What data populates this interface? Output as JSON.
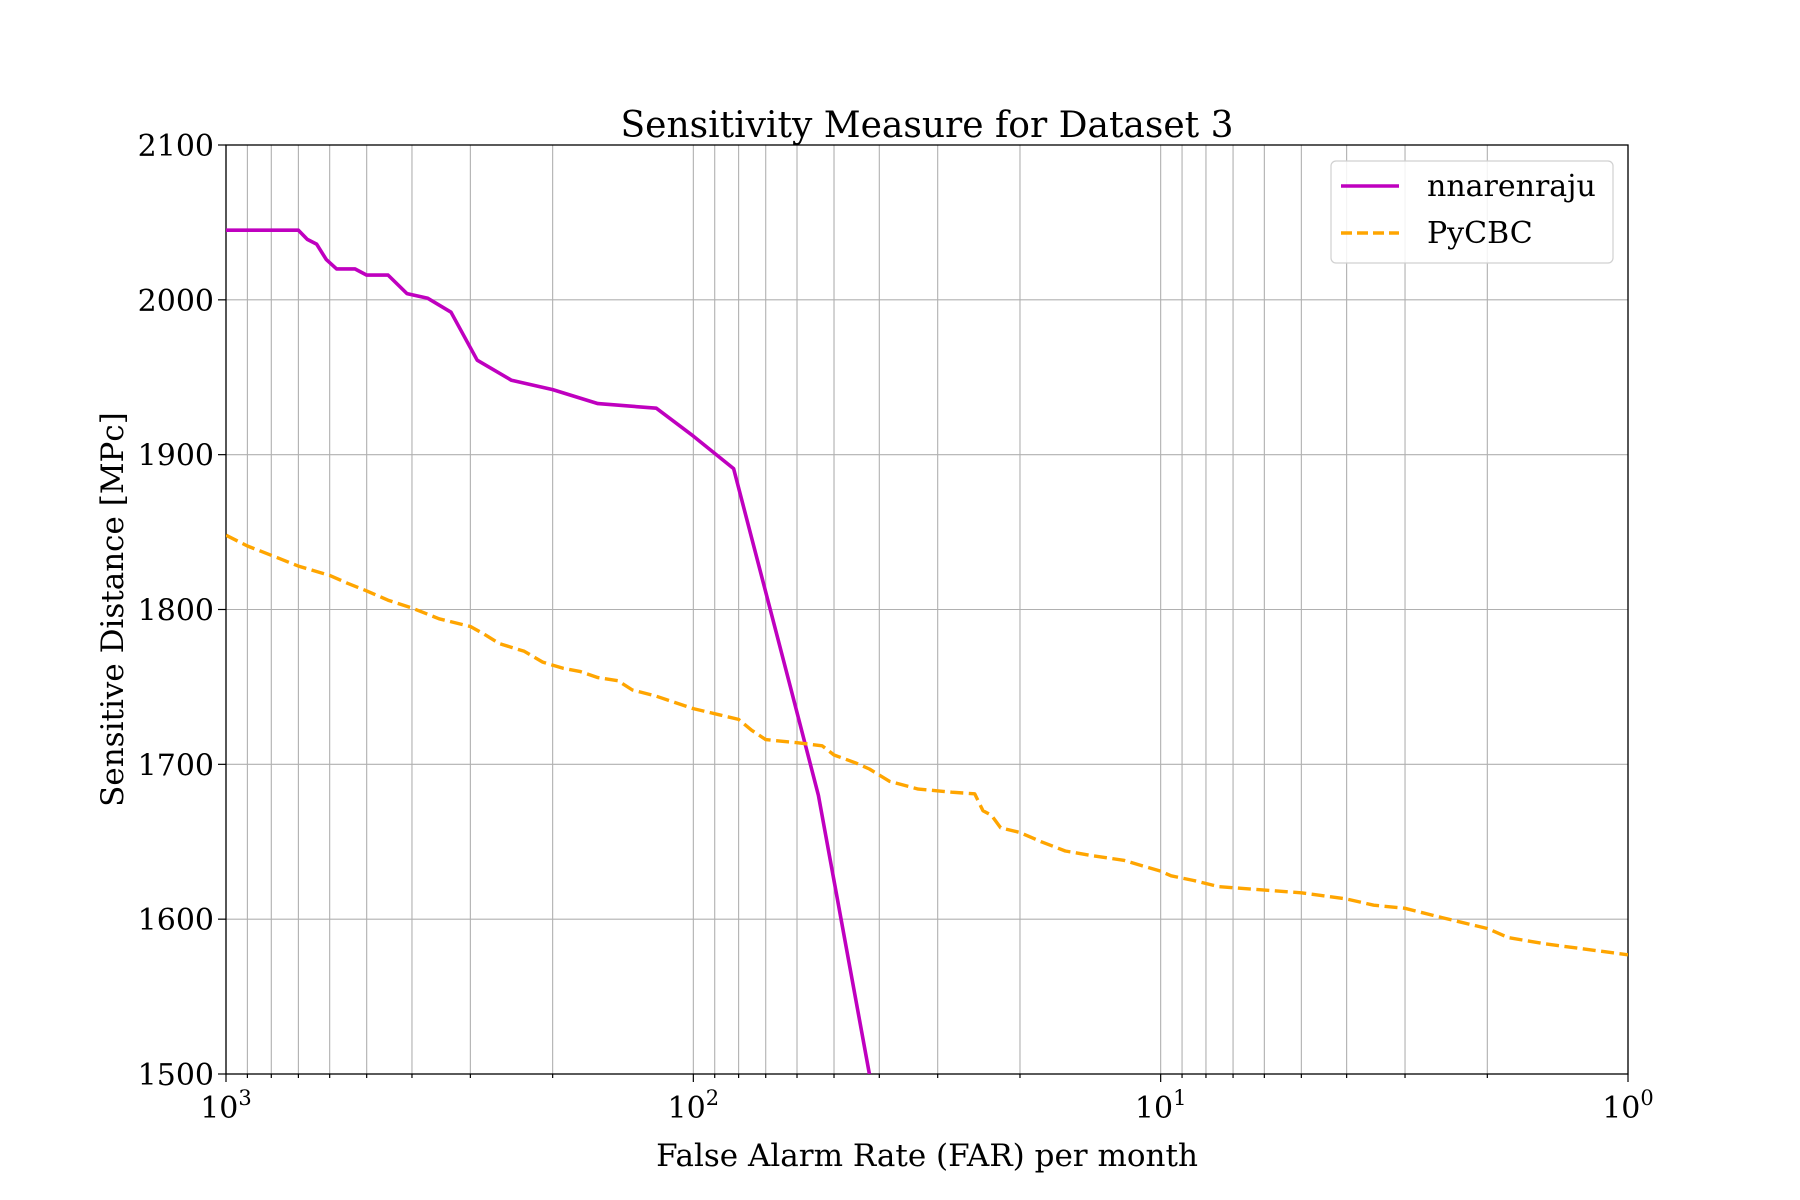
{
  "chart_data": {
    "type": "line",
    "title": "Sensitivity Measure for Dataset 3",
    "xlabel": "False Alarm Rate (FAR) per month",
    "ylabel": "Sensitive Distance [MPc]",
    "x_scale": "log",
    "x_reversed": true,
    "xlim": [
      1000,
      1
    ],
    "ylim": [
      1500,
      2100
    ],
    "grid": "major-and-minor",
    "legend_position": "top-right",
    "x_ticks": [
      {
        "value": 1000,
        "base": "10",
        "exp": "3"
      },
      {
        "value": 100,
        "base": "10",
        "exp": "2"
      },
      {
        "value": 10,
        "base": "10",
        "exp": "1"
      },
      {
        "value": 1,
        "base": "10",
        "exp": "0"
      }
    ],
    "y_ticks": [
      {
        "value": 1500,
        "label": "1500"
      },
      {
        "value": 1600,
        "label": "1600"
      },
      {
        "value": 1700,
        "label": "1700"
      },
      {
        "value": 1800,
        "label": "1800"
      },
      {
        "value": 1900,
        "label": "1900"
      },
      {
        "value": 2000,
        "label": "2000"
      },
      {
        "value": 2100,
        "label": "2100"
      }
    ],
    "series": [
      {
        "name": "nnarenraju",
        "color": "#bf00bf",
        "style": "solid",
        "points": [
          [
            1000,
            2045
          ],
          [
            700,
            2045
          ],
          [
            670,
            2039
          ],
          [
            640,
            2036
          ],
          [
            610,
            2026
          ],
          [
            580,
            2020
          ],
          [
            530,
            2020
          ],
          [
            500,
            2016
          ],
          [
            450,
            2016
          ],
          [
            410,
            2004
          ],
          [
            370,
            2001
          ],
          [
            330,
            1992
          ],
          [
            290,
            1961
          ],
          [
            245,
            1948
          ],
          [
            200,
            1942
          ],
          [
            160,
            1933
          ],
          [
            120,
            1930
          ],
          [
            100,
            1912
          ],
          [
            82,
            1891
          ],
          [
            62,
            1750
          ],
          [
            54,
            1680
          ],
          [
            42,
            1500
          ]
        ]
      },
      {
        "name": "PyCBC",
        "color": "#ffa500",
        "style": "dashed",
        "points": [
          [
            1000,
            1848
          ],
          [
            900,
            1841
          ],
          [
            800,
            1835
          ],
          [
            700,
            1828
          ],
          [
            600,
            1822
          ],
          [
            550,
            1817
          ],
          [
            500,
            1812
          ],
          [
            450,
            1806
          ],
          [
            400,
            1801
          ],
          [
            350,
            1794
          ],
          [
            300,
            1789
          ],
          [
            280,
            1784
          ],
          [
            260,
            1778
          ],
          [
            230,
            1773
          ],
          [
            210,
            1766
          ],
          [
            190,
            1762
          ],
          [
            175,
            1760
          ],
          [
            160,
            1756
          ],
          [
            145,
            1754
          ],
          [
            135,
            1748
          ],
          [
            120,
            1744
          ],
          [
            100,
            1736
          ],
          [
            88,
            1732
          ],
          [
            80,
            1729
          ],
          [
            75,
            1722
          ],
          [
            70,
            1716
          ],
          [
            60,
            1714
          ],
          [
            53,
            1712
          ],
          [
            50,
            1706
          ],
          [
            45,
            1701
          ],
          [
            42,
            1697
          ],
          [
            38,
            1689
          ],
          [
            33,
            1684
          ],
          [
            28,
            1682
          ],
          [
            25,
            1681
          ],
          [
            24,
            1670
          ],
          [
            23,
            1667
          ],
          [
            22,
            1659
          ],
          [
            20,
            1656
          ],
          [
            18,
            1650
          ],
          [
            16,
            1644
          ],
          [
            14,
            1641
          ],
          [
            12,
            1638
          ],
          [
            10,
            1631
          ],
          [
            9.5,
            1628
          ],
          [
            8.5,
            1625
          ],
          [
            7.5,
            1621
          ],
          [
            5,
            1617
          ],
          [
            4,
            1613
          ],
          [
            3.5,
            1609
          ],
          [
            3,
            1607
          ],
          [
            2.5,
            1601
          ],
          [
            2,
            1594
          ],
          [
            1.8,
            1588
          ],
          [
            1.5,
            1584
          ],
          [
            1,
            1577
          ]
        ]
      }
    ]
  }
}
